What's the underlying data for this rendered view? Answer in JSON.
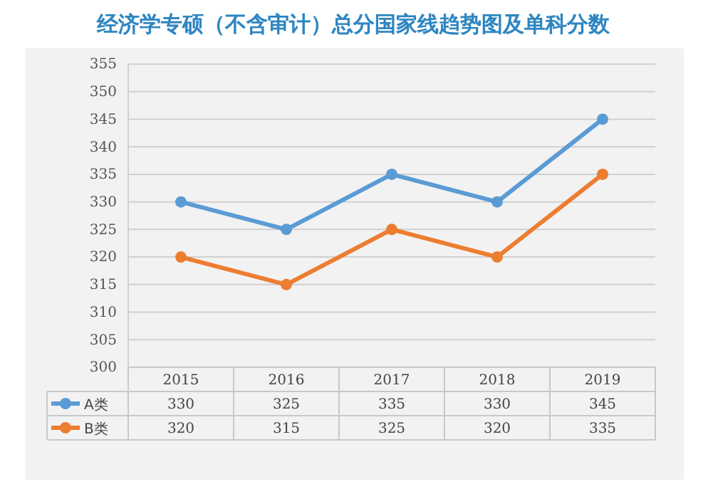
{
  "chart_data": {
    "type": "line",
    "title": "经济学专硕（不含审计）总分国家线趋势图及单科分数",
    "categories": [
      "2015",
      "2016",
      "2017",
      "2018",
      "2019"
    ],
    "series": [
      {
        "name": "A类",
        "color": "#5b9bd5",
        "values": [
          330,
          325,
          335,
          330,
          345
        ]
      },
      {
        "name": "B类",
        "color": "#ed7d31",
        "values": [
          320,
          315,
          325,
          320,
          335
        ]
      }
    ],
    "ylim": [
      300,
      355
    ],
    "yticks": [
      300,
      305,
      310,
      315,
      320,
      325,
      330,
      335,
      340,
      345,
      350,
      355
    ],
    "grid": "y",
    "marker": "circle",
    "line_style": "solid",
    "data_labels": true,
    "legend": "bottom left"
  }
}
